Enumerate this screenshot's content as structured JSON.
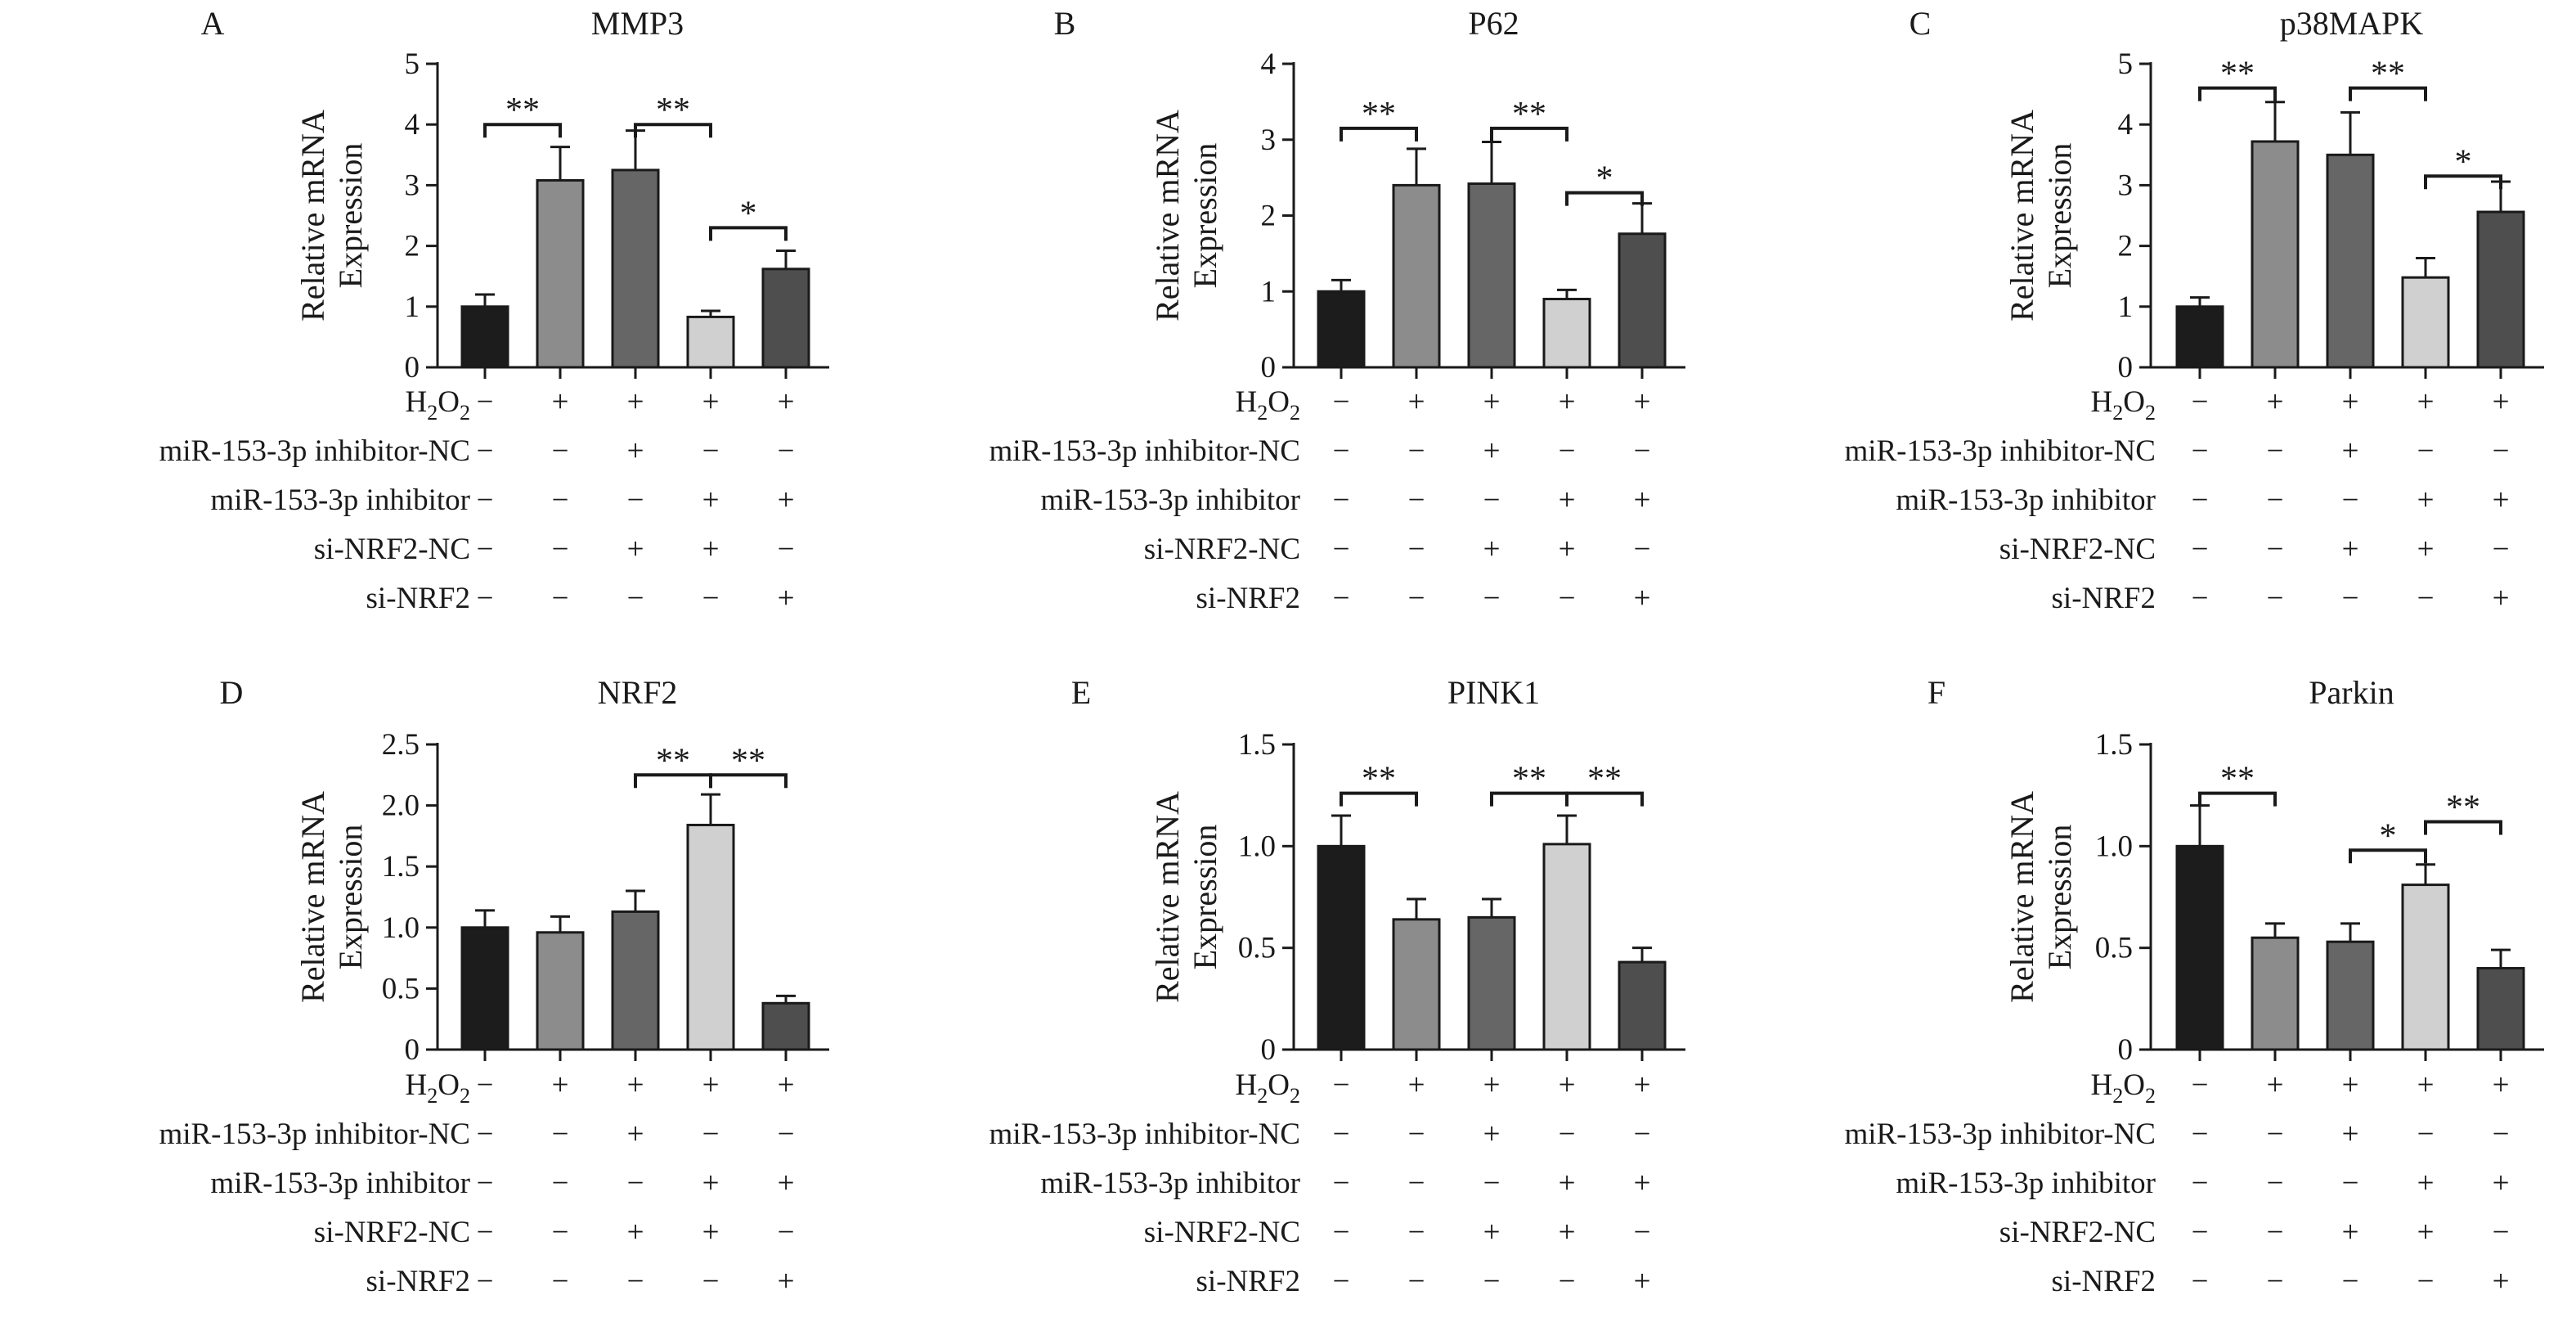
{
  "conditions": [
    {
      "label": "H2O2",
      "base": "H",
      "sub": "2",
      "mid": "O",
      "sub2": "2",
      "marks": [
        "−",
        "+",
        "+",
        "+",
        "+"
      ]
    },
    {
      "label": "miR-153-3p inhibitor-NC",
      "marks": [
        "−",
        "−",
        "+",
        "−",
        "−"
      ]
    },
    {
      "label": "miR-153-3p inhibitor",
      "marks": [
        "−",
        "−",
        "−",
        "+",
        "+"
      ]
    },
    {
      "label": "si-NRF2-NC",
      "marks": [
        "−",
        "−",
        "+",
        "+",
        "−"
      ]
    },
    {
      "label": "si-NRF2",
      "marks": [
        "−",
        "−",
        "−",
        "−",
        "+"
      ]
    }
  ],
  "bar_colors": [
    "#1c1c1c",
    "#8c8c8c",
    "#666666",
    "#d0d0d0",
    "#4e4e4e"
  ],
  "chart_data": [
    {
      "type": "bar",
      "panel": "A",
      "title": "MMP3",
      "ylabel": "Relative mRNA Expression",
      "ylabel_lines": [
        "Relative mRNA",
        "Expression"
      ],
      "ylim": [
        0,
        5
      ],
      "yticks": [
        "0",
        "1",
        "2",
        "3",
        "4",
        "5"
      ],
      "ytick_values": [
        0,
        1,
        2,
        3,
        4,
        5
      ],
      "values": [
        1.0,
        3.08,
        3.25,
        0.83,
        1.62
      ],
      "errors": [
        0.2,
        0.55,
        0.65,
        0.1,
        0.3
      ],
      "significance": [
        {
          "from": 0,
          "to": 1,
          "label": "**",
          "y": 4.0
        },
        {
          "from": 2,
          "to": 3,
          "label": "**",
          "y": 4.0
        },
        {
          "from": 3,
          "to": 4,
          "label": "*",
          "y": 2.3
        }
      ]
    },
    {
      "type": "bar",
      "panel": "B",
      "title": "P62",
      "ylabel": "Relative mRNA Expression",
      "ylabel_lines": [
        "Relative mRNA",
        "Expression"
      ],
      "ylim": [
        0,
        4
      ],
      "yticks": [
        "0",
        "1",
        "2",
        "3",
        "4"
      ],
      "ytick_values": [
        0,
        1,
        2,
        3,
        4
      ],
      "values": [
        1.0,
        2.4,
        2.42,
        0.9,
        1.76
      ],
      "errors": [
        0.15,
        0.48,
        0.55,
        0.12,
        0.4
      ],
      "significance": [
        {
          "from": 0,
          "to": 1,
          "label": "**",
          "y": 3.15
        },
        {
          "from": 2,
          "to": 3,
          "label": "**",
          "y": 3.15
        },
        {
          "from": 3,
          "to": 4,
          "label": "*",
          "y": 2.3
        }
      ]
    },
    {
      "type": "bar",
      "panel": "C",
      "title": "p38MAPK",
      "ylabel": "Relative mRNA Expression",
      "ylabel_lines": [
        "Relative mRNA",
        "Expression"
      ],
      "ylim": [
        0,
        5
      ],
      "yticks": [
        "0",
        "1",
        "2",
        "3",
        "4",
        "5"
      ],
      "ytick_values": [
        0,
        1,
        2,
        3,
        4,
        5
      ],
      "values": [
        1.0,
        3.72,
        3.5,
        1.48,
        2.56
      ],
      "errors": [
        0.15,
        0.65,
        0.7,
        0.32,
        0.5
      ],
      "significance": [
        {
          "from": 0,
          "to": 1,
          "label": "**",
          "y": 4.6
        },
        {
          "from": 2,
          "to": 3,
          "label": "**",
          "y": 4.6
        },
        {
          "from": 3,
          "to": 4,
          "label": "*",
          "y": 3.15
        }
      ]
    },
    {
      "type": "bar",
      "panel": "D",
      "title": "NRF2",
      "ylabel": "Relative mRNA Expression",
      "ylabel_lines": [
        "Relative mRNA",
        "Expression"
      ],
      "ylim": [
        0,
        2.5
      ],
      "yticks": [
        "0",
        "0.5",
        "1.0",
        "1.5",
        "2.0",
        "2.5"
      ],
      "ytick_values": [
        0,
        0.5,
        1.0,
        1.5,
        2.0,
        2.5
      ],
      "values": [
        1.0,
        0.96,
        1.13,
        1.84,
        0.38
      ],
      "errors": [
        0.14,
        0.13,
        0.17,
        0.25,
        0.06
      ],
      "significance": [
        {
          "from": 2,
          "to": 3,
          "label": "**",
          "y": 2.25
        },
        {
          "from": 3,
          "to": 4,
          "label": "**",
          "y": 2.25
        }
      ]
    },
    {
      "type": "bar",
      "panel": "E",
      "title": "PINK1",
      "ylabel": "Relative mRNA Expression",
      "ylabel_lines": [
        "Relative mRNA",
        "Expression"
      ],
      "ylim": [
        0,
        1.5
      ],
      "yticks": [
        "0",
        "0.5",
        "1.0",
        "1.5"
      ],
      "ytick_values": [
        0,
        0.5,
        1.0,
        1.5
      ],
      "values": [
        1.0,
        0.64,
        0.65,
        1.01,
        0.43
      ],
      "errors": [
        0.15,
        0.1,
        0.09,
        0.14,
        0.07
      ],
      "significance": [
        {
          "from": 0,
          "to": 1,
          "label": "**",
          "y": 1.26
        },
        {
          "from": 2,
          "to": 3,
          "label": "**",
          "y": 1.26
        },
        {
          "from": 3,
          "to": 4,
          "label": "**",
          "y": 1.26
        }
      ]
    },
    {
      "type": "bar",
      "panel": "F",
      "title": "Parkin",
      "ylabel": "Relative mRNA Expression",
      "ylabel_lines": [
        "Relative mRNA",
        "Expression"
      ],
      "ylim": [
        0,
        1.5
      ],
      "yticks": [
        "0",
        "0.5",
        "1.0",
        "1.5"
      ],
      "ytick_values": [
        0,
        0.5,
        1.0,
        1.5
      ],
      "values": [
        1.0,
        0.55,
        0.53,
        0.81,
        0.4
      ],
      "errors": [
        0.2,
        0.07,
        0.09,
        0.1,
        0.09
      ],
      "significance": [
        {
          "from": 0,
          "to": 1,
          "label": "**",
          "y": 1.26
        },
        {
          "from": 2,
          "to": 3,
          "label": "*",
          "y": 0.98
        },
        {
          "from": 3,
          "to": 4,
          "label": "**",
          "y": 1.12
        }
      ]
    }
  ]
}
